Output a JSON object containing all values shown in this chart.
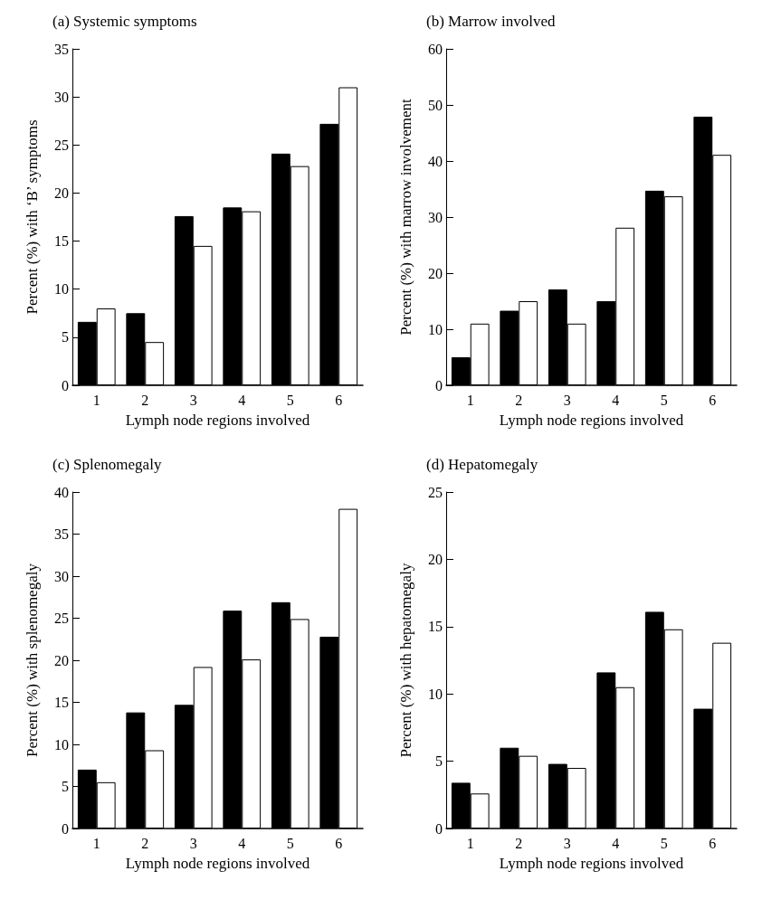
{
  "chart_data": [
    {
      "type": "bar",
      "title": "(a) Systemic symptoms",
      "xlabel": "Lymph node regions involved",
      "ylabel": "Percent (%) with ‘B’ symptoms",
      "categories": [
        "1",
        "2",
        "3",
        "4",
        "5",
        "6"
      ],
      "series": [
        {
          "color": "#000000",
          "values": [
            6.6,
            7.5,
            17.6,
            18.5,
            24.1,
            27.2
          ]
        },
        {
          "color": "#ffffff",
          "values": [
            8.0,
            4.5,
            14.5,
            18.1,
            22.8,
            31.0
          ]
        }
      ],
      "ylim": [
        0,
        35
      ],
      "yticks": [
        0,
        5,
        10,
        15,
        20,
        25,
        30,
        35
      ],
      "grid": false
    },
    {
      "type": "bar",
      "title": "(b) Marrow involved",
      "xlabel": "Lymph node regions involved",
      "ylabel": "Percent (%) with marrow involvement",
      "categories": [
        "1",
        "2",
        "3",
        "4",
        "5",
        "6"
      ],
      "series": [
        {
          "color": "#000000",
          "values": [
            5,
            13.3,
            17.1,
            15,
            34.7,
            47.9
          ]
        },
        {
          "color": "#ffffff",
          "values": [
            11,
            15,
            11,
            28.1,
            33.7,
            41.1
          ]
        }
      ],
      "ylim": [
        0,
        60
      ],
      "yticks": [
        0,
        10,
        20,
        30,
        40,
        50,
        60
      ],
      "grid": false
    },
    {
      "type": "bar",
      "title": "(c) Splenomegaly",
      "xlabel": "Lymph node regions involved",
      "ylabel": "Percent (%) with splenomegaly",
      "categories": [
        "1",
        "2",
        "3",
        "4",
        "5",
        "6"
      ],
      "series": [
        {
          "color": "#000000",
          "values": [
            7,
            13.8,
            14.7,
            25.9,
            26.9,
            22.8
          ]
        },
        {
          "color": "#ffffff",
          "values": [
            5.5,
            9.3,
            19.2,
            20.1,
            24.9,
            38.0
          ]
        }
      ],
      "ylim": [
        0,
        40
      ],
      "yticks": [
        0,
        5,
        10,
        15,
        20,
        25,
        30,
        35,
        40
      ],
      "grid": false
    },
    {
      "type": "bar",
      "title": "(d) Hepatomegaly",
      "xlabel": "Lymph node regions involved",
      "ylabel": "Percent (%) with hepatomegaly",
      "categories": [
        "1",
        "2",
        "3",
        "4",
        "5",
        "6"
      ],
      "series": [
        {
          "color": "#000000",
          "values": [
            3.4,
            6.0,
            4.8,
            11.6,
            16.1,
            8.9
          ]
        },
        {
          "color": "#ffffff",
          "values": [
            2.6,
            5.4,
            4.5,
            10.5,
            14.8,
            13.8
          ]
        }
      ],
      "ylim": [
        0,
        25
      ],
      "yticks": [
        0,
        5,
        10,
        15,
        20,
        25
      ],
      "grid": false
    }
  ]
}
